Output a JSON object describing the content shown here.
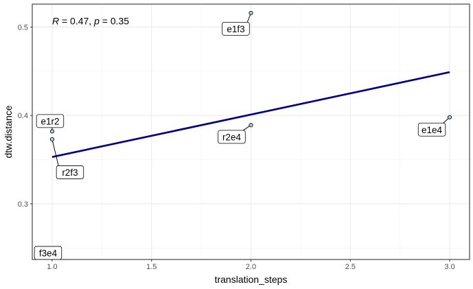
{
  "chart_data": {
    "type": "scatter",
    "xlabel": "translation_steps",
    "ylabel": "dtw.distance",
    "xlim": [
      0.9,
      3.1
    ],
    "ylim": [
      0.237,
      0.526
    ],
    "x_ticks": [
      1.0,
      1.5,
      2.0,
      2.5,
      3.0
    ],
    "x_tick_labels": [
      "1.0",
      "1.5",
      "2.0",
      "2.5",
      "3.0"
    ],
    "y_ticks": [
      0.3,
      0.4,
      0.5
    ],
    "y_tick_labels": [
      "0.3",
      "0.4",
      "0.5"
    ],
    "grid": true,
    "annotation": {
      "r_symbol": "R",
      "r_text": " = 0.47, ",
      "p_symbol": "p",
      "p_text": " = 0.35"
    },
    "points": [
      {
        "label": "e1r2",
        "x": 1.0,
        "y": 0.382
      },
      {
        "label": "r2f3",
        "x": 1.0,
        "y": 0.373
      },
      {
        "label": "f3e4",
        "x": 1.0,
        "y": 0.232
      },
      {
        "label": "e1f3",
        "x": 2.0,
        "y": 0.516
      },
      {
        "label": "r2e4",
        "x": 2.0,
        "y": 0.389
      },
      {
        "label": "e1e4",
        "x": 3.0,
        "y": 0.398
      }
    ],
    "regression": {
      "x": [
        1.0,
        3.0
      ],
      "y": [
        0.353,
        0.449
      ]
    },
    "colors": {
      "point_fill": "#add8e6",
      "point_stroke": "#000000",
      "line": "#00008b",
      "grid_major": "#ebebeb",
      "grid_minor": "#f5f5f5",
      "panel_border": "#333333"
    }
  }
}
